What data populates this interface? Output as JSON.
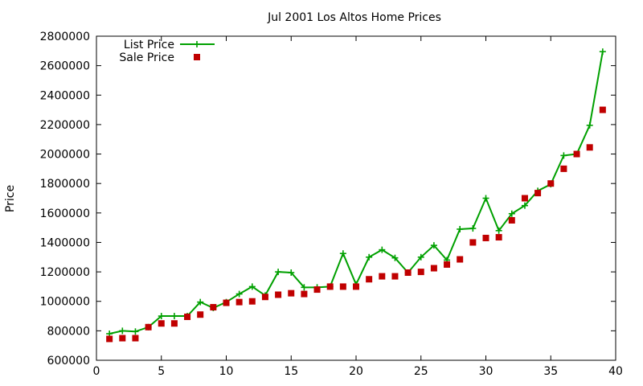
{
  "chart_data": {
    "type": "line",
    "title": "Jul 2001 Los Altos Home Prices",
    "xlabel": "",
    "ylabel": "Price",
    "xlim": [
      0,
      40
    ],
    "ylim": [
      600000,
      2800000
    ],
    "xticks": [
      0,
      5,
      10,
      15,
      20,
      25,
      30,
      35,
      40
    ],
    "yticks": [
      600000,
      800000,
      1000000,
      1200000,
      1400000,
      1600000,
      1800000,
      2000000,
      2200000,
      2400000,
      2600000,
      2800000
    ],
    "legend_position": "top-left",
    "grid": false,
    "x": [
      1,
      2,
      3,
      4,
      5,
      6,
      7,
      8,
      9,
      10,
      11,
      12,
      13,
      14,
      15,
      16,
      17,
      18,
      19,
      20,
      21,
      22,
      23,
      24,
      25,
      26,
      27,
      28,
      29,
      30,
      31,
      32,
      33,
      34,
      35,
      36,
      37,
      38,
      39
    ],
    "series": [
      {
        "name": "List Price",
        "style": "line-plus",
        "color": "#00a000",
        "values": [
          780000,
          800000,
          795000,
          825000,
          900000,
          900000,
          900000,
          995000,
          955000,
          995000,
          1050000,
          1100000,
          1040000,
          1200000,
          1195000,
          1095000,
          1095000,
          1100000,
          1325000,
          1115000,
          1300000,
          1350000,
          1295000,
          1195000,
          1300000,
          1380000,
          1280000,
          1490000,
          1495000,
          1700000,
          1480000,
          1595000,
          1650000,
          1750000,
          1795000,
          1990000,
          2000000,
          2195000,
          2695000
        ]
      },
      {
        "name": "Sale Price",
        "style": "square",
        "color": "#c00000",
        "values": [
          745000,
          750000,
          750000,
          825000,
          850000,
          850000,
          895000,
          910000,
          960000,
          990000,
          995000,
          1000000,
          1030000,
          1045000,
          1055000,
          1050000,
          1080000,
          1100000,
          1100000,
          1100000,
          1150000,
          1170000,
          1170000,
          1195000,
          1200000,
          1225000,
          1250000,
          1285000,
          1400000,
          1430000,
          1435000,
          1550000,
          1700000,
          1735000,
          1800000,
          1900000,
          2000000,
          2045000,
          2300000
        ]
      }
    ]
  }
}
